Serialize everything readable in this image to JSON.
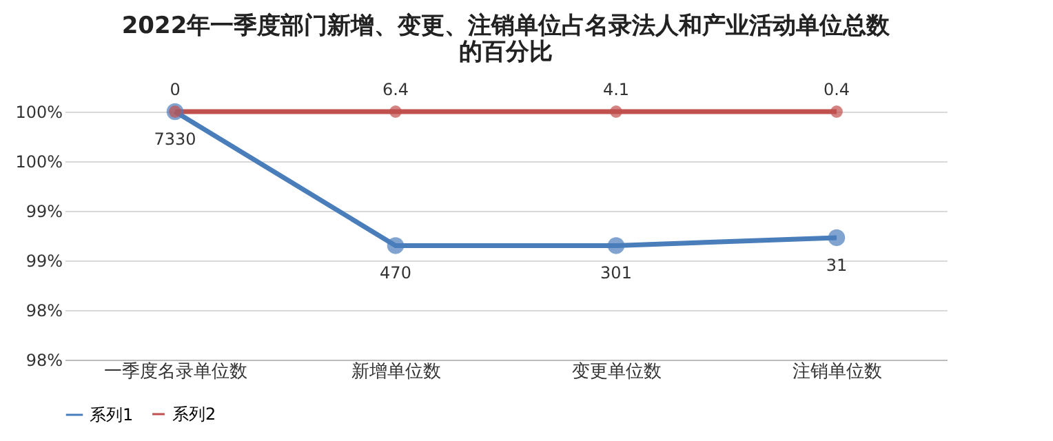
{
  "chart_data": {
    "type": "line",
    "title": "2022年一季度部门新增、变更、注销单位占名录法人和产业活动单位总数的百分比",
    "categories": [
      "一季度名录单位数",
      "新增单位数",
      "变更单位数",
      "注销单位数"
    ],
    "series": [
      {
        "name": "系列1",
        "color": "#4a7ebb",
        "values": [
          100,
          98.65,
          98.65,
          98.73
        ]
      },
      {
        "name": "系列2",
        "color": "#c0504d",
        "values": [
          100,
          100,
          100,
          100
        ]
      }
    ],
    "annotations": [
      {
        "text": "7330",
        "x": "一季度名录单位数",
        "y": 100
      },
      {
        "text": "470",
        "x": "新增单位数",
        "y": 98.65
      },
      {
        "text": "301",
        "x": "变更单位数",
        "y": 98.65
      },
      {
        "text": "31",
        "x": "注销单位数",
        "y": 98.73
      },
      {
        "text": "0",
        "x": "一季度名录单位数",
        "y": 100
      },
      {
        "text": "6.4",
        "x": "新增单位数",
        "y": 100
      },
      {
        "text": "4.1",
        "x": "变更单位数",
        "y": 100
      },
      {
        "text": "0.4",
        "x": "注销单位数",
        "y": 100
      }
    ],
    "ylim": [
      97.5,
      100
    ],
    "yticks": [
      {
        "value": 97.5,
        "label": "98%"
      },
      {
        "value": 98,
        "label": "98%"
      },
      {
        "value": 98.5,
        "label": "99%"
      },
      {
        "value": 99,
        "label": "99%"
      },
      {
        "value": 99.5,
        "label": "100%"
      },
      {
        "value": 100,
        "label": "100%"
      }
    ],
    "grid": "y",
    "legend": "bottom",
    "marker": "circle",
    "line_style": "solid"
  }
}
